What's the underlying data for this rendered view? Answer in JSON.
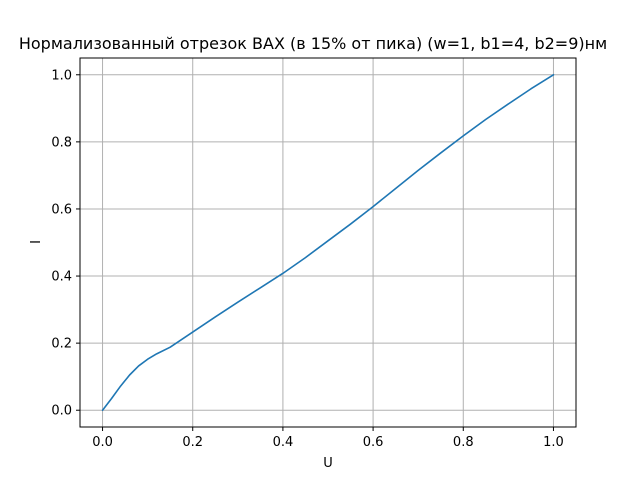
{
  "chart_data": {
    "type": "line",
    "title": "Нормализованный отрезок ВАХ (в 15% от пика) (w=1, b1=4, b2=9)нм",
    "xlabel": "U",
    "ylabel": "I",
    "xlim": [
      -0.05,
      1.05
    ],
    "ylim": [
      -0.05,
      1.05
    ],
    "xticks": [
      "0.0",
      "0.2",
      "0.4",
      "0.6",
      "0.8",
      "1.0"
    ],
    "yticks": [
      "0.0",
      "0.2",
      "0.4",
      "0.6",
      "0.8",
      "1.0"
    ],
    "grid": true,
    "series": [
      {
        "color": "#1f77b4",
        "x": [
          0.0,
          0.02,
          0.04,
          0.06,
          0.08,
          0.1,
          0.12,
          0.15,
          0.2,
          0.25,
          0.3,
          0.35,
          0.4,
          0.45,
          0.5,
          0.55,
          0.6,
          0.65,
          0.7,
          0.75,
          0.8,
          0.85,
          0.9,
          0.95,
          1.0
        ],
        "y": [
          0.0,
          0.035,
          0.072,
          0.105,
          0.132,
          0.152,
          0.168,
          0.188,
          0.233,
          0.278,
          0.322,
          0.365,
          0.408,
          0.455,
          0.505,
          0.555,
          0.607,
          0.661,
          0.715,
          0.767,
          0.818,
          0.867,
          0.913,
          0.958,
          1.0
        ]
      }
    ]
  }
}
